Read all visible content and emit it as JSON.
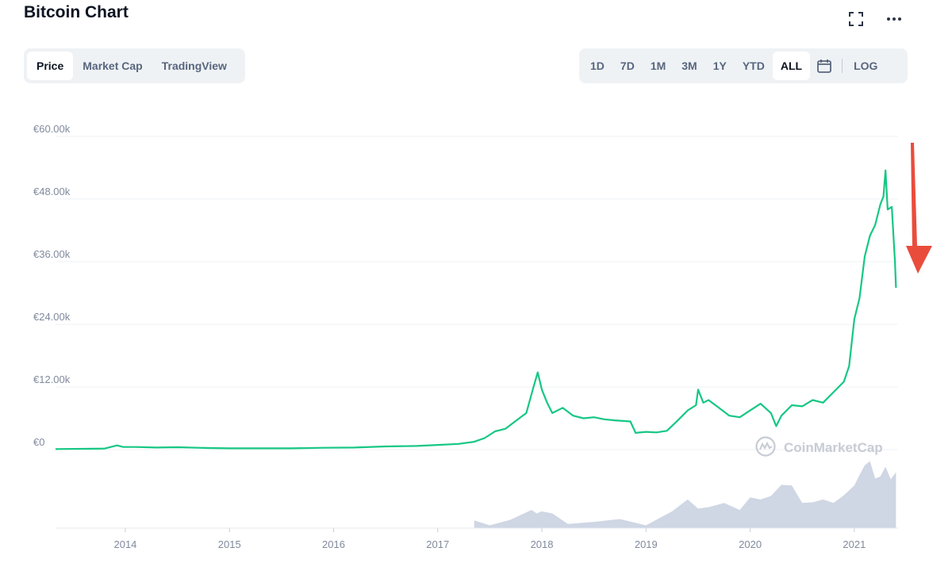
{
  "header": {
    "title": "Bitcoin Chart",
    "fullscreen_icon": "expand-icon",
    "more_icon": "more-dots-icon"
  },
  "left_tabs": [
    {
      "label": "Price",
      "active": true
    },
    {
      "label": "Market Cap",
      "active": false
    },
    {
      "label": "TradingView",
      "active": false
    }
  ],
  "range_tabs": [
    {
      "label": "1D",
      "active": false
    },
    {
      "label": "7D",
      "active": false
    },
    {
      "label": "1M",
      "active": false
    },
    {
      "label": "3M",
      "active": false
    },
    {
      "label": "1Y",
      "active": false
    },
    {
      "label": "YTD",
      "active": false
    },
    {
      "label": "ALL",
      "active": true
    }
  ],
  "calendar_icon": "calendar-icon",
  "log_label": "LOG",
  "watermark": "CoinMarketCap",
  "colors": {
    "line": "#16c784",
    "volume": "#cfd6e4",
    "arrow": "#ea4c3c",
    "grid": "#eff2f5"
  },
  "chart_data": {
    "type": "line",
    "title": "",
    "ylim": [
      0,
      60000
    ],
    "y_ticks": [
      {
        "value": 0,
        "label": "€0"
      },
      {
        "value": 12000,
        "label": "€12.00k"
      },
      {
        "value": 24000,
        "label": "€24.00k"
      },
      {
        "value": 36000,
        "label": "€36.00k"
      },
      {
        "value": 48000,
        "label": "€48.00k"
      },
      {
        "value": 60000,
        "label": "€60.00k"
      }
    ],
    "xlim": [
      2013.33,
      2021.42
    ],
    "x_ticks": [
      {
        "value": 2014,
        "label": "2014"
      },
      {
        "value": 2015,
        "label": "2015"
      },
      {
        "value": 2016,
        "label": "2016"
      },
      {
        "value": 2017,
        "label": "2017"
      },
      {
        "value": 2018,
        "label": "2018"
      },
      {
        "value": 2019,
        "label": "2019"
      },
      {
        "value": 2020,
        "label": "2020"
      },
      {
        "value": 2021,
        "label": "2021"
      }
    ],
    "grid": true,
    "series": [
      {
        "x": [
          2013.33,
          2013.8,
          2013.92,
          2013.98,
          2014.1,
          2014.3,
          2014.5,
          2014.8,
          2015.0,
          2015.3,
          2015.6,
          2015.9,
          2016.2,
          2016.5,
          2016.8,
          2017.0,
          2017.2,
          2017.35,
          2017.45,
          2017.55,
          2017.65,
          2017.75,
          2017.85,
          2017.92,
          2017.96,
          2018.0,
          2018.05,
          2018.1,
          2018.2,
          2018.3,
          2018.4,
          2018.5,
          2018.6,
          2018.7,
          2018.85,
          2018.9,
          2019.0,
          2019.1,
          2019.2,
          2019.3,
          2019.4,
          2019.48,
          2019.5,
          2019.55,
          2019.6,
          2019.7,
          2019.8,
          2019.9,
          2020.0,
          2020.1,
          2020.2,
          2020.25,
          2020.3,
          2020.4,
          2020.5,
          2020.6,
          2020.7,
          2020.8,
          2020.9,
          2020.95,
          2021.0,
          2021.05,
          2021.1,
          2021.15,
          2021.2,
          2021.25,
          2021.28,
          2021.3,
          2021.32,
          2021.36,
          2021.39,
          2021.4
        ],
        "y": [
          100,
          200,
          800,
          500,
          500,
          400,
          450,
          300,
          250,
          250,
          250,
          350,
          400,
          600,
          700,
          900,
          1100,
          1500,
          2200,
          3500,
          4000,
          5500,
          7000,
          12000,
          14800,
          11500,
          9000,
          7000,
          8000,
          6500,
          6000,
          6200,
          5800,
          5600,
          5400,
          3200,
          3400,
          3300,
          3600,
          5500,
          7500,
          8500,
          11500,
          9000,
          9500,
          8000,
          6500,
          6200,
          7500,
          8800,
          7000,
          4500,
          6500,
          8500,
          8300,
          9500,
          9000,
          11000,
          13000,
          16000,
          25000,
          29000,
          37000,
          41000,
          43000,
          47000,
          48500,
          53500,
          46000,
          46500,
          36000,
          31000
        ]
      }
    ],
    "volume": {
      "x": [
        2017.35,
        2017.5,
        2017.7,
        2017.9,
        2017.95,
        2018.0,
        2018.1,
        2018.25,
        2018.5,
        2018.75,
        2019.0,
        2019.25,
        2019.4,
        2019.5,
        2019.6,
        2019.75,
        2019.9,
        2020.0,
        2020.1,
        2020.2,
        2020.3,
        2020.4,
        2020.5,
        2020.6,
        2020.7,
        2020.8,
        2020.9,
        2021.0,
        2021.05,
        2021.1,
        2021.15,
        2021.2,
        2021.25,
        2021.3,
        2021.35,
        2021.4
      ],
      "values": [
        0.05,
        0.08,
        0.1,
        0.2,
        0.25,
        0.22,
        0.15,
        0.1,
        0.07,
        0.07,
        0.08,
        0.22,
        0.35,
        0.32,
        0.28,
        0.3,
        0.3,
        0.42,
        0.35,
        0.5,
        0.6,
        0.55,
        0.4,
        0.35,
        0.35,
        0.4,
        0.45,
        0.55,
        0.8,
        0.88,
        0.9,
        0.75,
        0.72,
        0.82,
        0.74,
        0.78
      ]
    }
  }
}
